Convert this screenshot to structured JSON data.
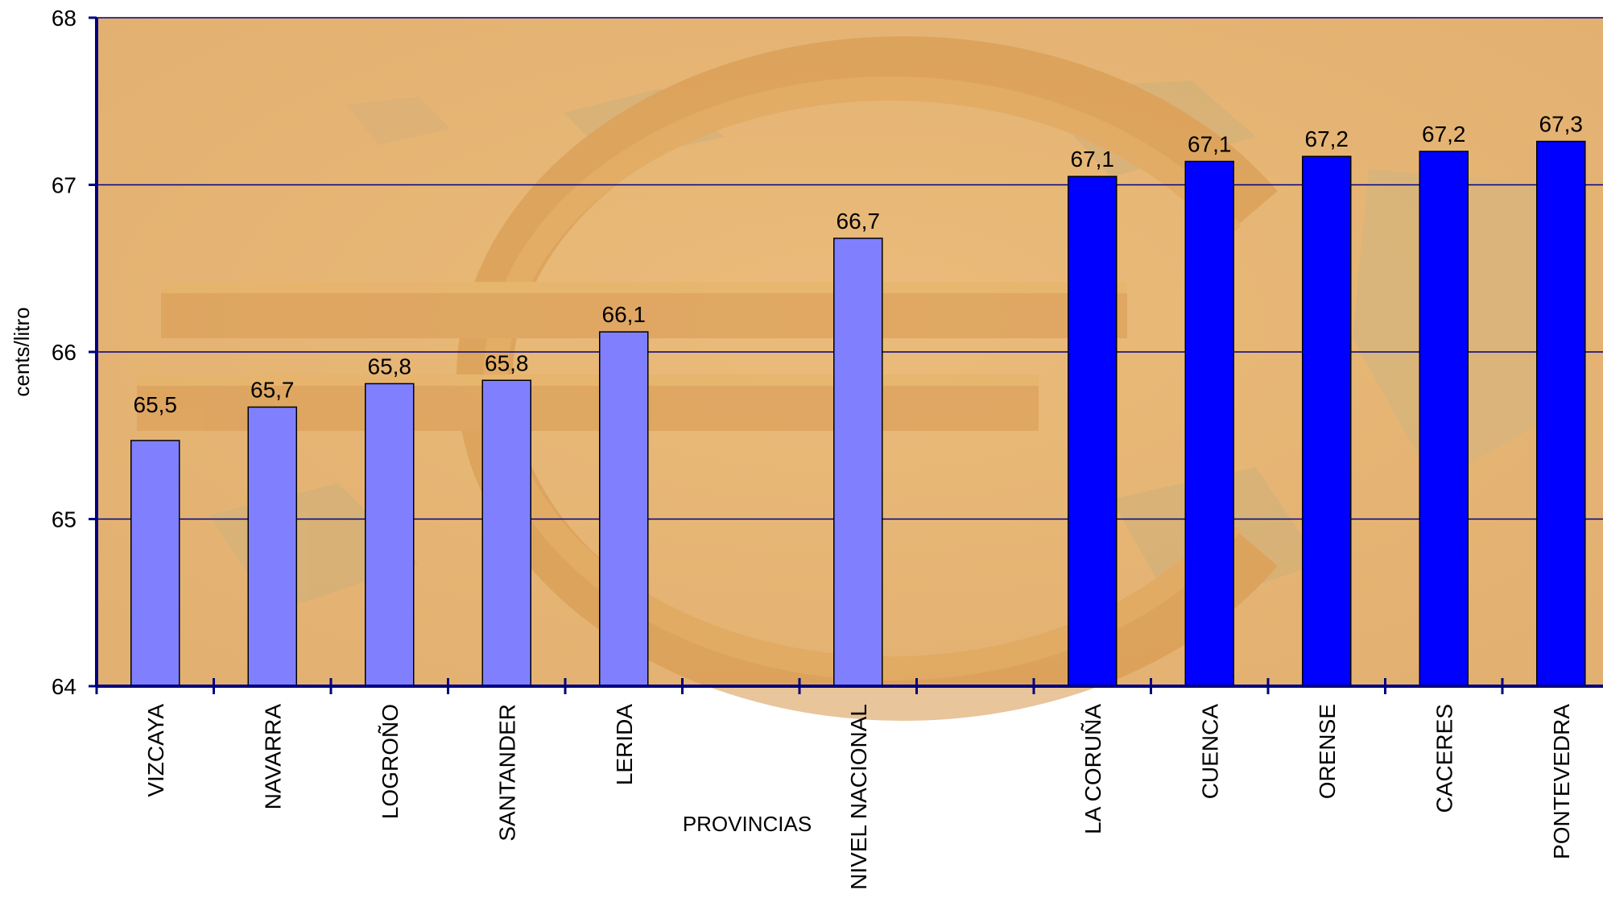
{
  "chart_data": {
    "type": "bar",
    "title": "",
    "ylabel": "cents/litro",
    "xlabel": "PROVINCIAS",
    "ylim": [
      64,
      68
    ],
    "yticks": [
      "64",
      "65",
      "66",
      "67",
      "68"
    ],
    "grid": true,
    "categories": [
      "VIZCAYA",
      "NAVARRA",
      "LOGROÑO",
      "SANTANDER",
      "LERIDA",
      "",
      "NIVEL NACIONAL",
      "",
      "LA CORUÑA",
      "CUENCA",
      "ORENSE",
      "CACERES",
      "PONTEVEDRA"
    ],
    "values": [
      65.47,
      65.67,
      65.81,
      65.83,
      66.12,
      null,
      66.68,
      null,
      67.05,
      67.14,
      67.17,
      67.2,
      67.26
    ],
    "value_labels": [
      "65,5",
      "65,7",
      "65,8",
      "65,8",
      "66,1",
      "",
      "66,7",
      "",
      "67,1",
      "67,1",
      "67,2",
      "67,2",
      "67,3"
    ],
    "bar_colors": [
      "#8080ff",
      "#8080ff",
      "#8080ff",
      "#8080ff",
      "#8080ff",
      "",
      "#8080ff",
      "",
      "#0000ff",
      "#0000ff",
      "#0000ff",
      "#0000ff",
      "#0000ff"
    ],
    "colors": {
      "plot_background": "#e8b876",
      "axis": "#000080",
      "gridline": "#000080",
      "bar_outline": "#000000"
    }
  }
}
